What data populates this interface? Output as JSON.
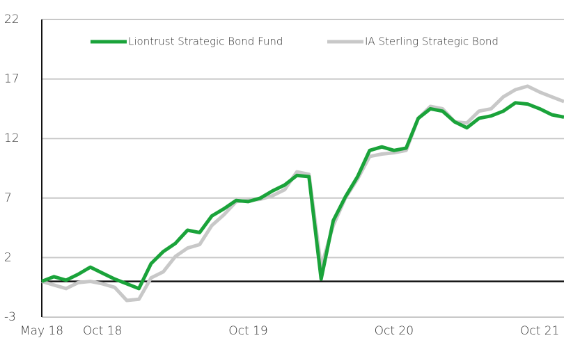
{
  "chart_data": {
    "type": "line",
    "categories": [
      "May 18",
      null,
      null,
      null,
      null,
      "Oct 18",
      null,
      null,
      null,
      null,
      null,
      null,
      null,
      null,
      null,
      null,
      null,
      "Oct 19",
      null,
      null,
      null,
      null,
      null,
      null,
      null,
      null,
      null,
      null,
      null,
      "Oct 20",
      null,
      null,
      null,
      null,
      null,
      null,
      null,
      null,
      null,
      null,
      null,
      "Oct 21",
      null,
      null
    ],
    "series": [
      {
        "name": "Liontrust Strategic Bond Fund",
        "color": "#1aa33a",
        "values": [
          0,
          0.4,
          0.1,
          0.6,
          1.2,
          0.7,
          0.2,
          -0.2,
          -0.6,
          1.5,
          2.5,
          3.2,
          4.3,
          4.1,
          5.5,
          6.1,
          6.8,
          6.7,
          7.0,
          7.6,
          8.1,
          8.9,
          8.8,
          0.2,
          5.1,
          7.1,
          8.8,
          11.0,
          11.3,
          11.0,
          11.2,
          13.7,
          14.5,
          14.3,
          13.4,
          12.9,
          13.7,
          13.9,
          14.3,
          15.0,
          14.9,
          14.5,
          14.0,
          13.8
        ]
      },
      {
        "name": "IA Sterling Strategic Bond",
        "color": "#c8c8c8",
        "values": [
          0,
          -0.3,
          -0.6,
          -0.1,
          0,
          -0.2,
          -0.5,
          -1.6,
          -1.5,
          0.3,
          0.8,
          2.1,
          2.8,
          3.1,
          4.7,
          5.6,
          6.7,
          6.8,
          6.9,
          7.2,
          7.7,
          9.2,
          9.0,
          1.2,
          4.7,
          7.0,
          8.6,
          10.5,
          10.7,
          10.8,
          11.0,
          13.7,
          14.7,
          14.5,
          13.4,
          13.3,
          14.3,
          14.5,
          15.5,
          16.1,
          16.4,
          15.9,
          15.5,
          15.1
        ]
      }
    ],
    "ylim": [
      -3,
      22
    ],
    "yticks": [
      -3,
      2,
      7,
      12,
      17,
      22
    ],
    "grid": true,
    "legend": "top"
  }
}
